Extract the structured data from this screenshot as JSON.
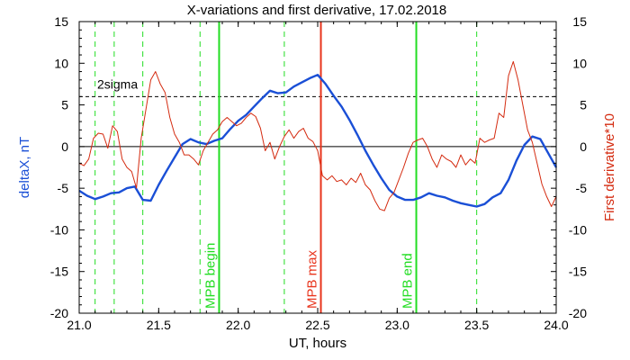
{
  "chart_data": {
    "type": "line",
    "title": "X-variations and first derivative, 17.02.2018",
    "xlabel": "UT, hours",
    "ylabel_left": "deltaX, nT",
    "ylabel_right": "First derivative*10",
    "xlim": [
      21.0,
      24.0
    ],
    "ylim_left": [
      -20,
      15
    ],
    "ylim_right": [
      -20,
      15
    ],
    "xticks": [
      "21.0",
      "21.5",
      "22.0",
      "22.5",
      "23.0",
      "23.5",
      "24.0"
    ],
    "xtick_values": [
      21.0,
      21.5,
      22.0,
      22.5,
      23.0,
      23.5,
      24.0
    ],
    "yticks_left": [
      "-20",
      "-15",
      "-10",
      "-5",
      "0",
      "5",
      "10",
      "15"
    ],
    "ytick_values_left": [
      -20,
      -15,
      -10,
      -5,
      0,
      5,
      10,
      15
    ],
    "yticks_right": [
      "-20",
      "-15",
      "-10",
      "-5",
      "0",
      "5",
      "10",
      "15"
    ],
    "ytick_values_right": [
      -20,
      -15,
      -10,
      -5,
      0,
      5,
      10,
      15
    ],
    "grid": false,
    "colors": {
      "deltaX": "#1a4fd6",
      "derivative": "#d42b10",
      "mpb": "#22dd22",
      "mpb_max": "#e8341c",
      "axis": "#000000"
    },
    "series": [
      {
        "axis": "left",
        "color": "#1a4fd6",
        "x": [
          21.0,
          21.05,
          21.1,
          21.15,
          21.2,
          21.25,
          21.3,
          21.35,
          21.4,
          21.45,
          21.5,
          21.55,
          21.6,
          21.65,
          21.7,
          21.75,
          21.8,
          21.85,
          21.9,
          21.95,
          22.0,
          22.05,
          22.1,
          22.15,
          22.2,
          22.25,
          22.3,
          22.35,
          22.4,
          22.45,
          22.5,
          22.55,
          22.6,
          22.65,
          22.7,
          22.75,
          22.8,
          22.85,
          22.9,
          22.95,
          23.0,
          23.05,
          23.1,
          23.15,
          23.2,
          23.25,
          23.3,
          23.35,
          23.4,
          23.45,
          23.5,
          23.55,
          23.6,
          23.65,
          23.7,
          23.75,
          23.8,
          23.85,
          23.9,
          23.95,
          24.0
        ],
        "y": [
          -5.3,
          -5.9,
          -6.3,
          -6.0,
          -5.6,
          -5.5,
          -5.0,
          -4.8,
          -6.4,
          -6.5,
          -4.6,
          -2.9,
          -1.3,
          0.3,
          0.9,
          0.5,
          0.3,
          0.7,
          1.0,
          2.1,
          3.1,
          3.8,
          4.8,
          5.8,
          6.7,
          6.4,
          6.5,
          7.2,
          7.7,
          8.2,
          8.6,
          7.5,
          6.1,
          4.8,
          3.2,
          1.4,
          -0.5,
          -2.2,
          -3.8,
          -5.2,
          -6.0,
          -6.4,
          -6.4,
          -6.1,
          -5.6,
          -5.9,
          -6.1,
          -6.5,
          -6.8,
          -7.0,
          -7.2,
          -6.9,
          -6.1,
          -5.6,
          -4.0,
          -1.7,
          0.2,
          1.2,
          0.9,
          -0.8,
          -2.5
        ]
      },
      {
        "axis": "right",
        "color": "#d42b10",
        "x": [
          21.0,
          21.03,
          21.06,
          21.09,
          21.12,
          21.15,
          21.18,
          21.21,
          21.24,
          21.27,
          21.3,
          21.33,
          21.36,
          21.39,
          21.42,
          21.45,
          21.48,
          21.51,
          21.54,
          21.57,
          21.6,
          21.63,
          21.66,
          21.69,
          21.72,
          21.75,
          21.78,
          21.81,
          21.84,
          21.87,
          21.9,
          21.93,
          21.96,
          21.99,
          22.02,
          22.05,
          22.08,
          22.11,
          22.14,
          22.17,
          22.2,
          22.23,
          22.26,
          22.29,
          22.32,
          22.35,
          22.38,
          22.41,
          22.44,
          22.47,
          22.5,
          22.53,
          22.56,
          22.59,
          22.62,
          22.65,
          22.68,
          22.71,
          22.74,
          22.77,
          22.8,
          22.83,
          22.86,
          22.89,
          22.92,
          22.95,
          22.98,
          23.01,
          23.04,
          23.07,
          23.1,
          23.13,
          23.16,
          23.19,
          23.22,
          23.25,
          23.28,
          23.31,
          23.34,
          23.37,
          23.4,
          23.43,
          23.46,
          23.49,
          23.52,
          23.55,
          23.58,
          23.61,
          23.64,
          23.67,
          23.7,
          23.73,
          23.76,
          23.79,
          23.82,
          23.85,
          23.88,
          23.91,
          23.94,
          23.97,
          24.0
        ],
        "y": [
          -2.0,
          -2.3,
          -1.5,
          1.0,
          1.6,
          1.5,
          -0.2,
          2.5,
          1.8,
          -1.5,
          -2.5,
          -3.0,
          -5.0,
          1.0,
          4.5,
          8.0,
          9.0,
          7.5,
          6.5,
          3.5,
          1.5,
          0.5,
          -1.0,
          -1.0,
          -1.5,
          -2.2,
          -0.5,
          0.5,
          1.5,
          2.0,
          3.0,
          3.5,
          3.0,
          2.5,
          2.8,
          3.5,
          4.0,
          3.6,
          2.2,
          -0.5,
          0.5,
          -1.5,
          0.0,
          1.2,
          2.0,
          1.0,
          1.8,
          2.2,
          1.0,
          0.6,
          -0.5,
          -3.5,
          -4.0,
          -3.5,
          -4.2,
          -4.0,
          -4.6,
          -3.8,
          -4.3,
          -3.2,
          -4.6,
          -5.2,
          -6.5,
          -7.5,
          -7.7,
          -6.2,
          -5.5,
          -4.0,
          -2.5,
          -0.8,
          0.5,
          0.8,
          1.0,
          0.0,
          -1.5,
          -2.5,
          -1.0,
          -1.5,
          -1.8,
          -2.5,
          -1.0,
          -2.2,
          -1.5,
          -2.0,
          1.0,
          0.5,
          0.8,
          1.0,
          4.0,
          3.5,
          8.5,
          10.2,
          8.0,
          5.0,
          2.0,
          0.5,
          -2.0,
          -4.5,
          -6.0,
          -7.2,
          -6.0
        ]
      }
    ],
    "threshold": {
      "label": "2sigma",
      "value": 6.0
    },
    "vlines_dashed": [
      21.1,
      21.22,
      21.4,
      21.76,
      22.29,
      23.5
    ],
    "vlines_marked": [
      {
        "x": 21.88,
        "label": "MPB begin",
        "color": "#22dd22"
      },
      {
        "x": 22.52,
        "label": "MPB max",
        "color": "#e8341c"
      },
      {
        "x": 23.12,
        "label": "MPB end",
        "color": "#22dd22"
      }
    ]
  }
}
